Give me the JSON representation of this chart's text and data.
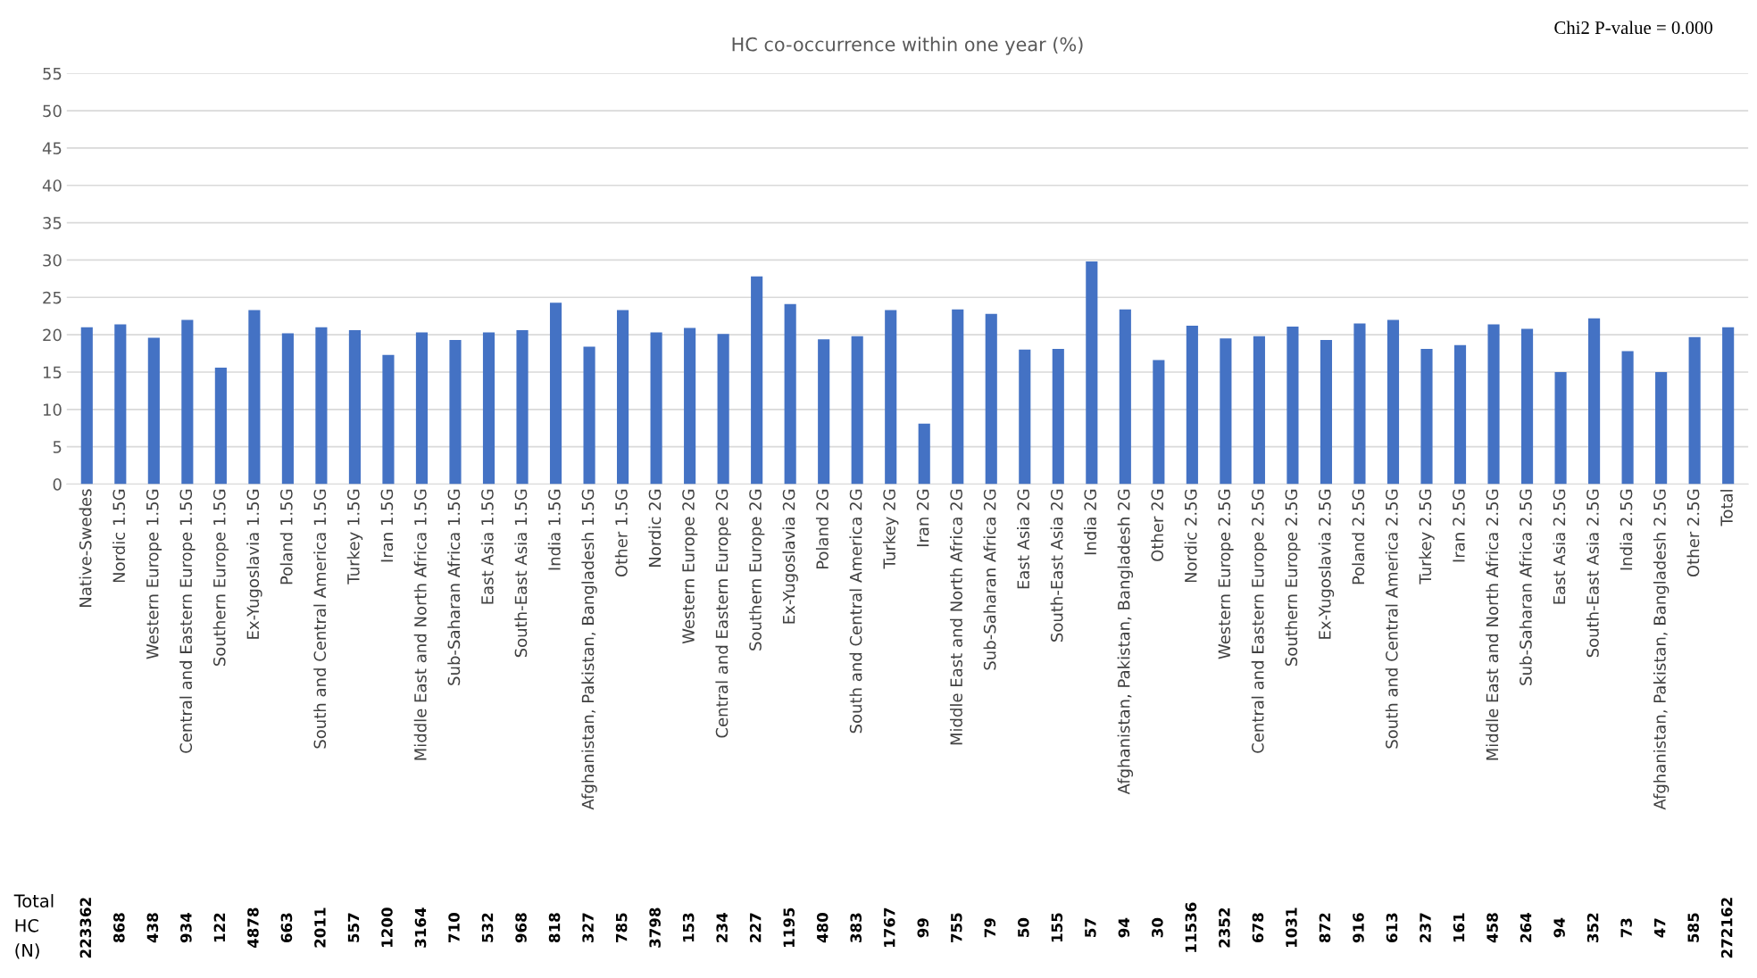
{
  "chart_data": {
    "type": "bar",
    "title": "HC co-occurrence within one year (%)",
    "categories": [
      "Native-Swedes",
      "Nordic 1.5G",
      "Western Europe 1.5G",
      "Central and Eastern Europe 1.5G",
      "Southern Europe 1.5G",
      "Ex-Yugoslavia 1.5G",
      "Poland 1.5G",
      "South and Central America 1.5G",
      "Turkey 1.5G",
      "Iran 1.5G",
      "Middle East and North Africa 1.5G",
      "Sub-Saharan Africa 1.5G",
      "East Asia 1.5G",
      "South-East Asia 1.5G",
      "India 1.5G",
      "Afghanistan, Pakistan, Bangladesh 1.5G",
      "Other 1.5G",
      "Nordic 2G",
      "Western Europe 2G",
      "Central and Eastern Europe 2G",
      "Southern Europe 2G",
      "Ex-Yugoslavia 2G",
      "Poland 2G",
      "South and Central America 2G",
      "Turkey 2G",
      "Iran 2G",
      "Middle East and North Africa 2G",
      "Sub-Saharan Africa 2G",
      "East Asia 2G",
      "South-East Asia 2G",
      "India 2G",
      "Afghanistan, Pakistan, Bangladesh 2G",
      "Other 2G",
      "Nordic 2.5G",
      "Western Europe 2.5G",
      "Central and Eastern Europe 2.5G",
      "Southern Europe 2.5G",
      "Ex-Yugoslavia 2.5G",
      "Poland 2.5G",
      "South and Central America 2.5G",
      "Turkey 2.5G",
      "Iran 2.5G",
      "Middle East and North Africa 2.5G",
      "Sub-Saharan Africa 2.5G",
      "East Asia 2.5G",
      "South-East Asia 2.5G",
      "India 2.5G",
      "Afghanistan, Pakistan, Bangladesh 2.5G",
      "Other 2.5G",
      "Total"
    ],
    "values": [
      21.0,
      21.4,
      19.6,
      22.0,
      15.6,
      23.3,
      20.2,
      21.0,
      20.6,
      17.3,
      20.3,
      19.3,
      20.3,
      20.6,
      24.3,
      18.4,
      23.3,
      20.3,
      20.9,
      20.1,
      27.8,
      24.1,
      19.4,
      19.8,
      23.3,
      8.1,
      23.4,
      22.8,
      18.0,
      18.1,
      29.8,
      23.4,
      16.6,
      21.2,
      19.5,
      19.8,
      21.1,
      19.3,
      21.5,
      22.0,
      18.1,
      18.6,
      21.4,
      20.8,
      15.0,
      22.2,
      17.8,
      15.0,
      19.7,
      21.0
    ],
    "color": "#4472c4",
    "ylim": [
      0,
      55
    ],
    "yticks": [
      0,
      5,
      10,
      15,
      20,
      25,
      30,
      35,
      40,
      45,
      50,
      55
    ],
    "grid": "y",
    "legend": false,
    "annotations": [
      "Chi2 P-value = 0.000",
      "Total HC (N)",
      "223362",
      "868",
      "438",
      "934",
      "122",
      "4878",
      "663",
      "2011",
      "557",
      "1200",
      "3164",
      "710",
      "532",
      "968",
      "818",
      "327",
      "785",
      "3798",
      "153",
      "234",
      "227",
      "1195",
      "480",
      "383",
      "1767",
      "99",
      "755",
      "79",
      "50",
      "155",
      "57",
      "94",
      "30",
      "11536",
      "2352",
      "678",
      "1031",
      "872",
      "916",
      "613",
      "237",
      "161",
      "458",
      "264",
      "94",
      "352",
      "73",
      "47",
      "585",
      "272162"
    ]
  }
}
